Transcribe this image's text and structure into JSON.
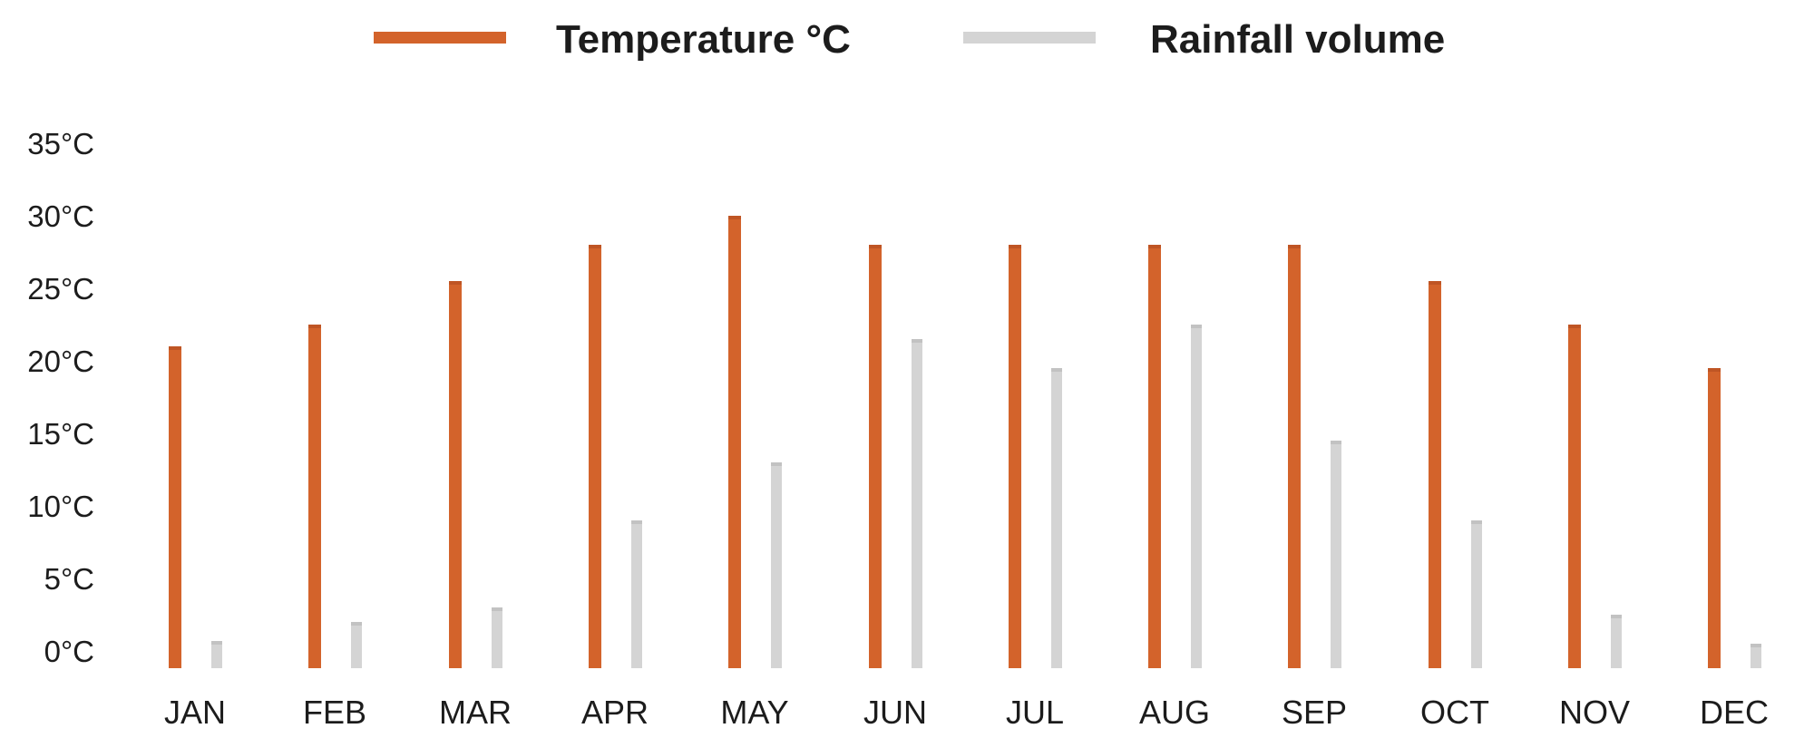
{
  "chart_data": {
    "type": "bar",
    "title": "",
    "categories": [
      "JAN",
      "FEB",
      "MAR",
      "APR",
      "MAY",
      "JUN",
      "JUL",
      "AUG",
      "SEP",
      "OCT",
      "NOV",
      "DEC"
    ],
    "series": [
      {
        "name": "Temperature °C",
        "color": "#d3632b",
        "values": [
          21,
          22.5,
          25.5,
          28,
          30,
          28,
          28,
          28,
          28,
          25.5,
          22.5,
          19.5
        ]
      },
      {
        "name": "Rainfall volume",
        "color": "#d4d4d4",
        "values": [
          0.7,
          2,
          3,
          9,
          13,
          21.5,
          19.5,
          22.5,
          14.5,
          9,
          2.5,
          0.5
        ]
      }
    ],
    "xlabel": "",
    "ylabel": "",
    "y_axis": {
      "unit": "°C",
      "min": 0,
      "max": 35,
      "step": 5,
      "tick_labels": [
        "35°C",
        "30°C",
        "25°C",
        "20°C",
        "15°C",
        "10°C",
        "5°C",
        "0°C"
      ]
    },
    "legend_position": "top",
    "grid": false
  },
  "colors": {
    "temperature": "#d3632b",
    "rainfall": "#d4d4d4",
    "text": "#1c1c1c",
    "background": "#ffffff"
  }
}
